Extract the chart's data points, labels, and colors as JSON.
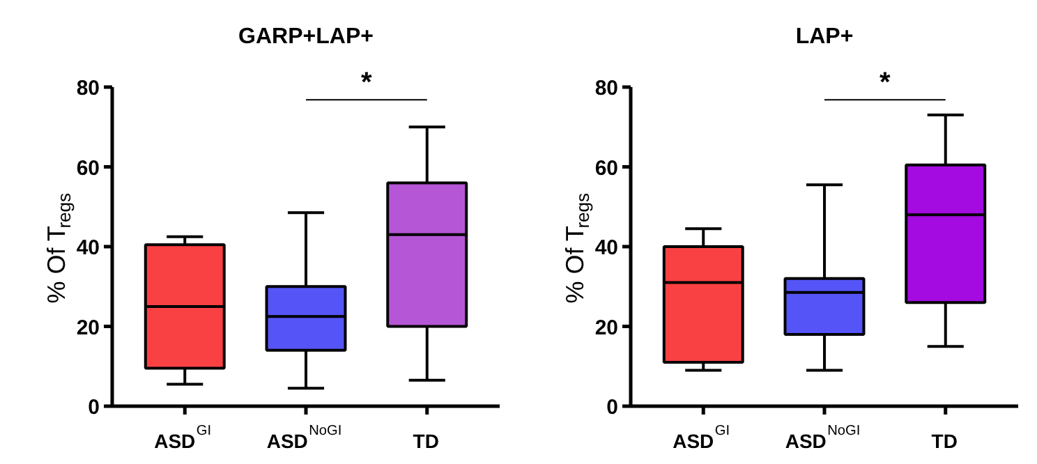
{
  "chart_data": [
    {
      "type": "box",
      "title": "GARP+LAP+",
      "ylabel": "% Of T$_{regs}$",
      "categories": [
        "ASD$^{GI}$",
        "ASD$^{NoGI}$",
        "TD"
      ],
      "colors": [
        "#f94144",
        "#5555f7",
        "#b556d6"
      ],
      "boxes": [
        {
          "low": 5.5,
          "q1": 9.5,
          "median": 25,
          "q3": 40.5,
          "high": 42.5
        },
        {
          "low": 4.5,
          "q1": 14,
          "median": 22.5,
          "q3": 30,
          "high": 48.5
        },
        {
          "low": 6.5,
          "q1": 20,
          "median": 43,
          "q3": 56,
          "high": 70
        }
      ],
      "ylim": [
        0,
        80
      ],
      "yticks": [
        0,
        20,
        40,
        60,
        80
      ],
      "grid": false,
      "legend": false,
      "annotations": [
        "*"
      ]
    },
    {
      "type": "box",
      "title": "LAP+",
      "ylabel": "% Of T$_{regs}$",
      "categories": [
        "ASD$^{GI}$",
        "ASD$^{NoGI}$",
        "TD"
      ],
      "colors": [
        "#f94144",
        "#5555f7",
        "#a30be0"
      ],
      "boxes": [
        {
          "low": 9,
          "q1": 11,
          "median": 31,
          "q3": 40,
          "high": 44.5
        },
        {
          "low": 9,
          "q1": 18,
          "median": 28.5,
          "q3": 32,
          "high": 55.5
        },
        {
          "low": 15,
          "q1": 26,
          "median": 48,
          "q3": 60.5,
          "high": 73
        }
      ],
      "ylim": [
        0,
        80
      ],
      "yticks": [
        0,
        20,
        40,
        60,
        80
      ],
      "grid": false,
      "legend": false,
      "annotations": [
        "*"
      ]
    }
  ]
}
